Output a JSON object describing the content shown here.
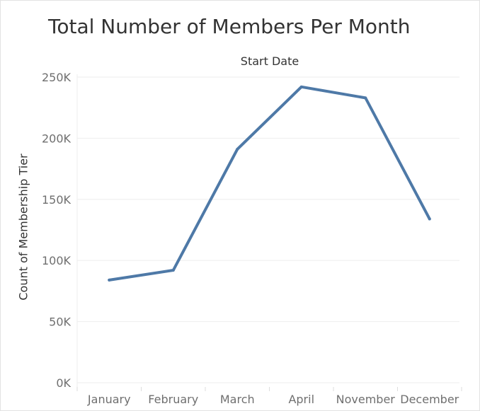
{
  "chart_data": {
    "type": "line",
    "title": "Total Number of Members Per Month",
    "column_header": "Start Date",
    "ylabel": "Count of Membership Tier",
    "categories": [
      "January",
      "February",
      "March",
      "April",
      "November",
      "December"
    ],
    "values": [
      84000,
      92000,
      191000,
      242000,
      233000,
      134000
    ],
    "ylim": [
      0,
      250000
    ],
    "yticks": [
      0,
      50000,
      100000,
      150000,
      200000,
      250000
    ],
    "ytick_labels": [
      "0K",
      "50K",
      "100K",
      "150K",
      "200K",
      "250K"
    ],
    "line_color": "#4e79a7",
    "grid": true
  }
}
